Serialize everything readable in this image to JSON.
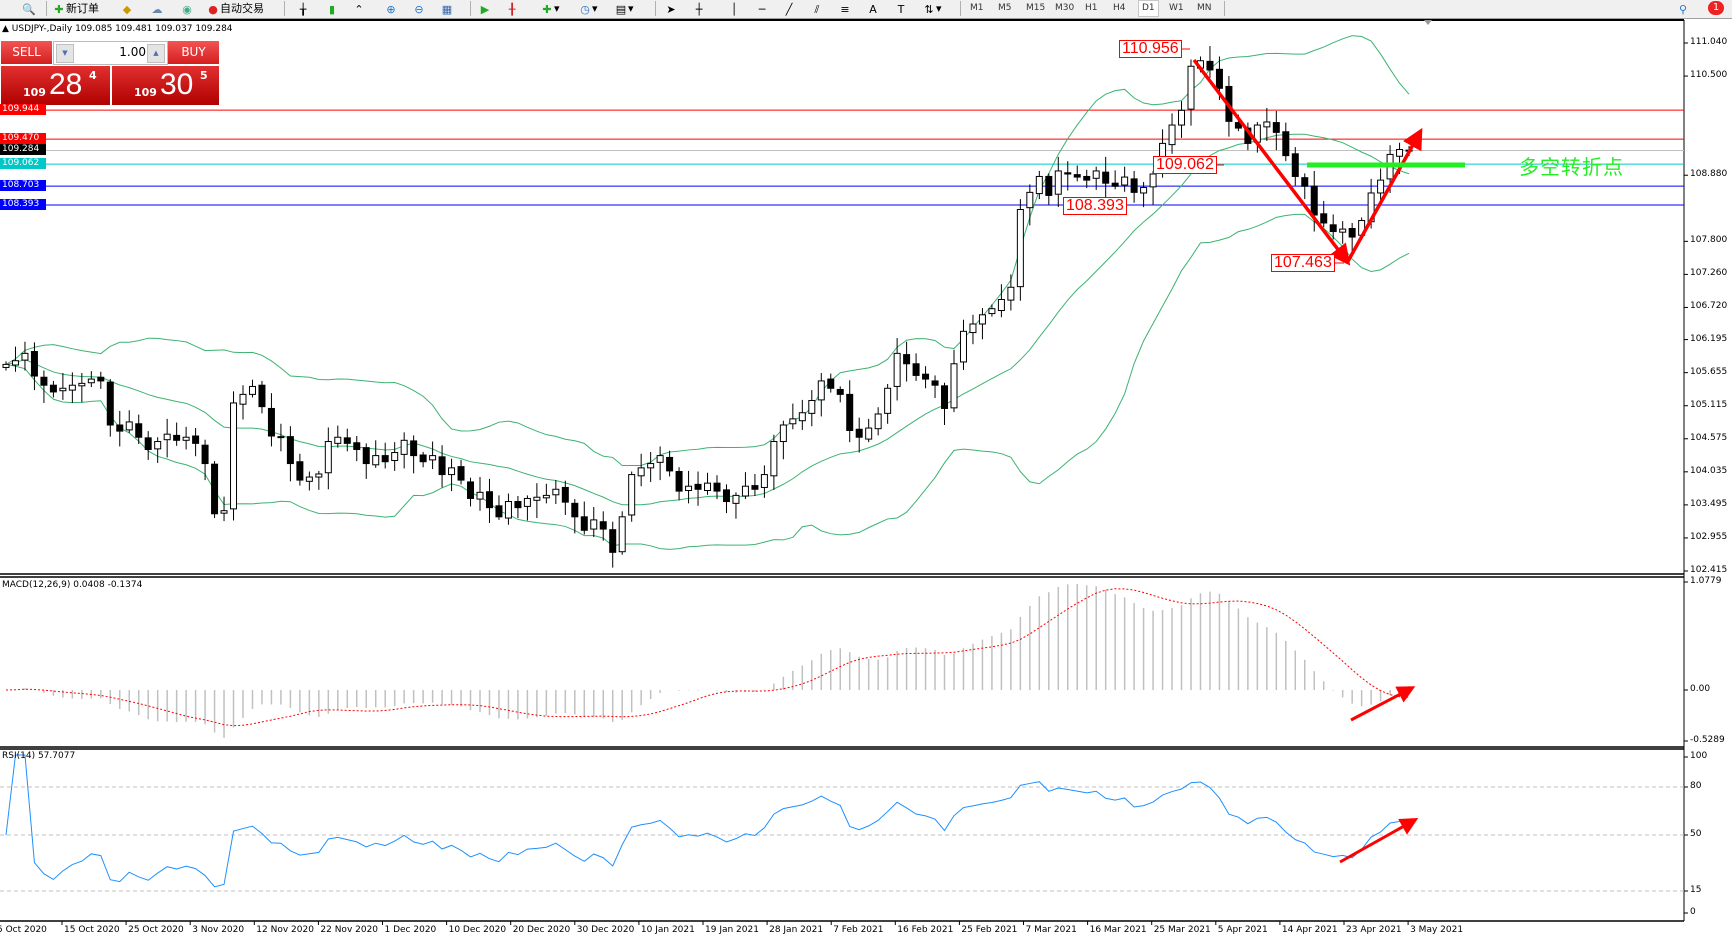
{
  "toolbar": {
    "new_order_label": "新订单",
    "auto_trading_label": "自动交易",
    "timeframes": [
      "M1",
      "M5",
      "M15",
      "M30",
      "H1",
      "H4",
      "D1",
      "W1",
      "MN"
    ],
    "active_timeframe": "D1",
    "notification_count": "1"
  },
  "chart": {
    "title": "USDJPY-,Daily  109.085 109.481 109.037 109.284"
  },
  "trade_panel": {
    "sell_label": "SELL",
    "buy_label": "BUY",
    "lot": "1.00",
    "sell_price": {
      "prefix": "109",
      "big": "28",
      "sup": "4"
    },
    "buy_price": {
      "prefix": "109",
      "big": "30",
      "sup": "5"
    },
    "color": "#d31e1e"
  },
  "annotations": {
    "high": "110.956",
    "mid": "109.062",
    "support": "108.393",
    "low": "107.463",
    "pivot_text": "多空转折点",
    "arrow_color": "#ff0000",
    "pivot_line_color": "#22ee22"
  },
  "indicators": {
    "macd_label": "MACD(12,26,9) 0.0408 -0.1374",
    "rsi_label": "RSI(14) 57.7077"
  },
  "chart_data": {
    "type": "candlestick",
    "symbol": "USDJPY-",
    "timeframe": "Daily",
    "closes": [
      105.79,
      105.85,
      105.97,
      105.6,
      105.45,
      105.34,
      105.4,
      105.45,
      105.48,
      105.55,
      105.52,
      104.8,
      104.7,
      104.85,
      104.6,
      104.4,
      104.53,
      104.65,
      104.55,
      104.6,
      104.5,
      104.17,
      103.35,
      103.4,
      105.16,
      105.3,
      105.43,
      105.1,
      104.62,
      104.6,
      104.17,
      103.9,
      103.95,
      104.0,
      104.53,
      104.6,
      104.5,
      104.4,
      104.17,
      104.3,
      104.2,
      104.35,
      104.55,
      104.3,
      104.2,
      104.3,
      103.99,
      104.1,
      103.9,
      103.6,
      103.7,
      103.45,
      103.3,
      103.55,
      103.45,
      103.6,
      103.62,
      103.65,
      103.75,
      103.54,
      103.3,
      103.08,
      103.25,
      103.1,
      102.72,
      103.3,
      103.99,
      104.1,
      104.17,
      104.3,
      104.05,
      103.72,
      103.8,
      103.75,
      103.85,
      103.72,
      103.55,
      103.65,
      103.8,
      103.75,
      103.99,
      104.53,
      104.8,
      104.9,
      105.0,
      105.2,
      105.52,
      105.4,
      105.3,
      104.71,
      104.6,
      104.75,
      104.98,
      105.4,
      105.97,
      105.8,
      105.61,
      105.55,
      105.45,
      105.07,
      105.8,
      106.33,
      106.45,
      106.6,
      106.7,
      106.85,
      107.05,
      108.32,
      108.6,
      108.86,
      108.55,
      108.95,
      108.9,
      108.85,
      108.8,
      108.95,
      108.75,
      108.7,
      108.85,
      108.6,
      108.68,
      108.9,
      109.4,
      109.7,
      109.94,
      110.66,
      110.75,
      110.6,
      110.3,
      109.76,
      109.65,
      109.4,
      109.7,
      109.75,
      109.58,
      109.2,
      108.86,
      108.7,
      108.23,
      108.1,
      107.96,
      108.0,
      107.87,
      108.14,
      108.59,
      108.8,
      109.22,
      109.3,
      109.284
    ],
    "x_ticks": [
      "5 Oct 2020",
      "15 Oct 2020",
      "25 Oct 2020",
      "3 Nov 2020",
      "12 Nov 2020",
      "22 Nov 2020",
      "1 Dec 2020",
      "10 Dec 2020",
      "20 Dec 2020",
      "30 Dec 2020",
      "10 Jan 2021",
      "19 Jan 2021",
      "28 Jan 2021",
      "7 Feb 2021",
      "16 Feb 2021",
      "25 Feb 2021",
      "7 Mar 2021",
      "16 Mar 2021",
      "25 Mar 2021",
      "5 Apr 2021",
      "14 Apr 2021",
      "23 Apr 2021",
      "3 May 2021"
    ],
    "y_ticks": [
      "111.040",
      "110.500",
      "108.880",
      "107.800",
      "107.260",
      "106.720",
      "106.195",
      "105.655",
      "105.115",
      "104.575",
      "104.035",
      "103.495",
      "102.955",
      "102.415"
    ],
    "ylim": [
      102.415,
      111.04
    ],
    "hlines": [
      {
        "price": "109.944",
        "color": "#ff0000"
      },
      {
        "price": "109.470",
        "color": "#ff0000"
      },
      {
        "price": "109.284",
        "color": "#c0c0c0",
        "tag": "#000000"
      },
      {
        "price": "109.062",
        "color": "#00c8c8"
      },
      {
        "price": "108.703",
        "color": "#0000ff"
      },
      {
        "price": "108.393",
        "color": "#0000ff"
      }
    ],
    "bollinger": {
      "period": 20,
      "deviation": 2,
      "color": "#3cb371"
    },
    "macd": {
      "fast": 12,
      "slow": 26,
      "signal": 9,
      "ticks": [
        "1.0779",
        "0.00",
        "-0.5289"
      ],
      "ylim": [
        -0.5289,
        1.0779
      ],
      "hist_color": "#c0c0c0",
      "signal_color": "#ff0000"
    },
    "rsi": {
      "period": 14,
      "ticks": [
        "100",
        "80",
        "50",
        "15",
        "0"
      ],
      "levels": [
        80,
        50,
        15
      ],
      "color": "#1e90ff"
    }
  }
}
